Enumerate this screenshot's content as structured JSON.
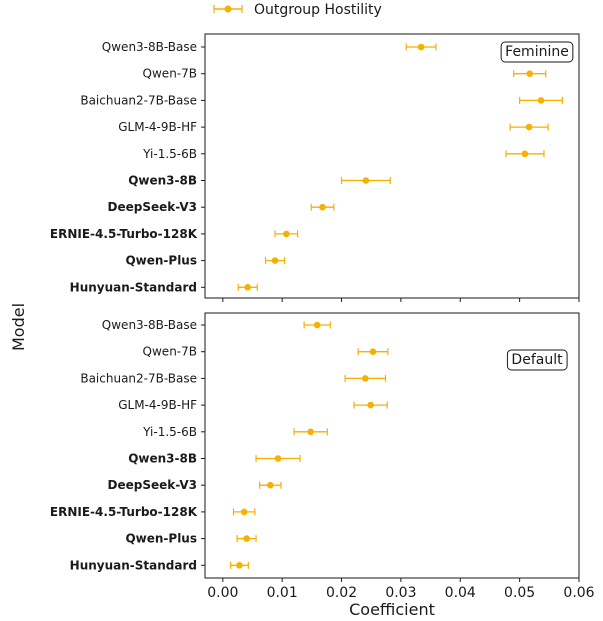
{
  "chart_data": {
    "type": "scatter",
    "subtype": "dot-with-error-bars",
    "legend": {
      "label": "Outgroup Hostility",
      "position": "top",
      "color": "#f5b000"
    },
    "xlabel": "Coefficient",
    "ylabel": "Model",
    "xlim": [
      -0.003,
      0.06
    ],
    "xticks": [
      "0.00",
      "0.01",
      "0.02",
      "0.03",
      "0.04",
      "0.05",
      "0.06"
    ],
    "xtick_values": [
      0.0,
      0.01,
      0.02,
      0.03,
      0.04,
      0.05,
      0.06
    ],
    "grid": false,
    "models": [
      {
        "name": "Qwen3-8B-Base",
        "bold": false
      },
      {
        "name": "Qwen-7B",
        "bold": false
      },
      {
        "name": "Baichuan2-7B-Base",
        "bold": false
      },
      {
        "name": "GLM-4-9B-HF",
        "bold": false
      },
      {
        "name": "Yi-1.5-6B",
        "bold": false
      },
      {
        "name": "Qwen3-8B",
        "bold": true
      },
      {
        "name": "DeepSeek-V3",
        "bold": true
      },
      {
        "name": "ERNIE-4.5-Turbo-128K",
        "bold": true
      },
      {
        "name": "Qwen-Plus",
        "bold": true
      },
      {
        "name": "Hunyuan-Standard",
        "bold": true
      }
    ],
    "panels": [
      {
        "label": "Feminine",
        "values": [
          0.0334,
          0.0517,
          0.0536,
          0.0516,
          0.0509,
          0.0241,
          0.0168,
          0.0107,
          0.0088,
          0.0042
        ],
        "errors": [
          0.0025,
          0.0027,
          0.0036,
          0.0032,
          0.0032,
          0.0041,
          0.0019,
          0.0019,
          0.0016,
          0.0016
        ]
      },
      {
        "label": "Default",
        "values": [
          0.0159,
          0.0253,
          0.024,
          0.0249,
          0.0148,
          0.0093,
          0.008,
          0.0036,
          0.004,
          0.0028
        ],
        "errors": [
          0.0022,
          0.0025,
          0.0034,
          0.0028,
          0.0028,
          0.0037,
          0.0018,
          0.0018,
          0.0016,
          0.0015
        ]
      }
    ]
  }
}
